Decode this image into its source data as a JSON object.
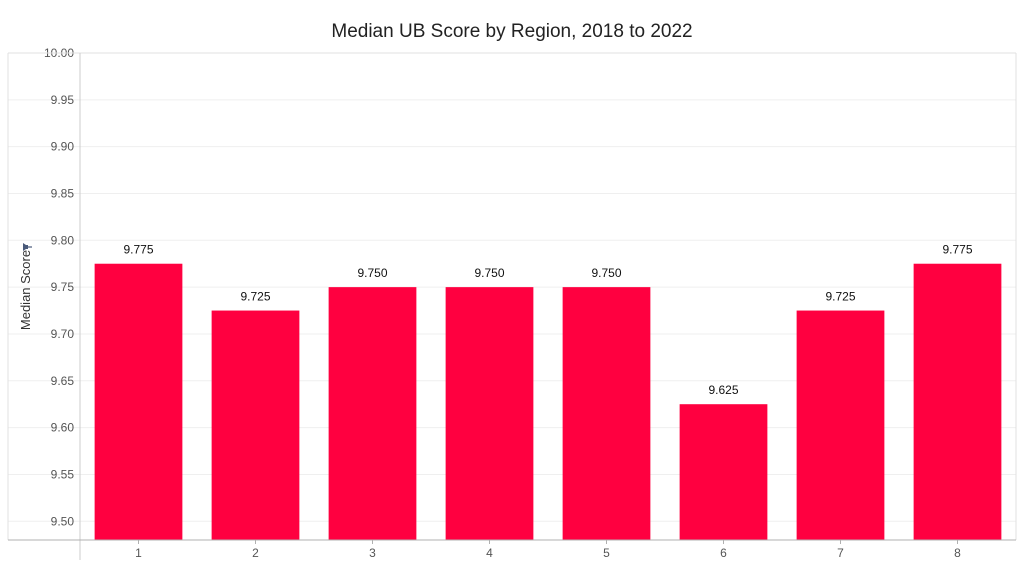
{
  "chart_data": {
    "type": "bar",
    "title": "Median UB Score by Region, 2018 to 2022",
    "xlabel": "",
    "ylabel": "Median Score",
    "ylabel_icon": "pin-icon",
    "categories": [
      "1",
      "2",
      "3",
      "4",
      "5",
      "6",
      "7",
      "8"
    ],
    "values": [
      9.775,
      9.725,
      9.75,
      9.75,
      9.75,
      9.625,
      9.725,
      9.775
    ],
    "data_labels": [
      "9.775",
      "9.725",
      "9.750",
      "9.750",
      "9.750",
      "9.625",
      "9.725",
      "9.775"
    ],
    "ylim": [
      9.48,
      10.0
    ],
    "yticks": [
      "9.50",
      "9.55",
      "9.60",
      "9.65",
      "9.70",
      "9.75",
      "9.80",
      "9.85",
      "9.90",
      "9.95",
      "10.00"
    ],
    "grid": true,
    "bar_color": "#ff0040",
    "legend": "none"
  }
}
